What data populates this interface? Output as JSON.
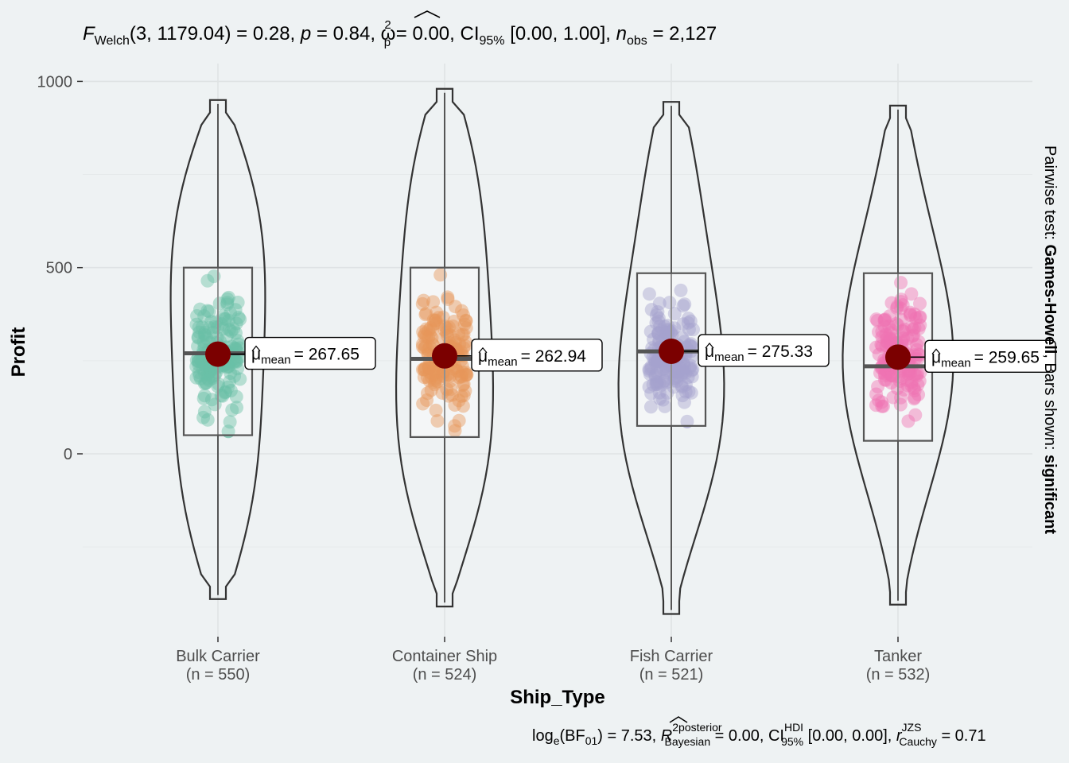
{
  "subtitle": {
    "F": "F",
    "welch": "Welch",
    "df": "(3, 1179.04) = 0.28, ",
    "p": "p",
    "p_val": " = 0.84, ",
    "omega": "ω",
    "omega_sup": "2",
    "omega_sub": "p",
    "omega_val": " = 0.00, CI",
    "ci_sub": "95%",
    "ci_val": " [0.00, 1.00], ",
    "n": "n",
    "n_sub": "obs",
    "n_val": " = 2,127"
  },
  "caption": {
    "log": "log",
    "log_sub": "e",
    "bf": "(BF",
    "bf_sub": "01",
    "bf_val": ") = 7.53, ",
    "r": "R",
    "r_sup": "2",
    "r_sup2": "posterior",
    "r_sub": "Bayesian",
    "r_val": " = 0.00, CI",
    "hdi_sup": "HDI",
    "hdi_sub": "95%",
    "hdi_val": " [0.00, 0.00], ",
    "rc": "r",
    "rc_sup": "JZS",
    "rc_sub": "Cauchy",
    "rc_val": " = 0.71"
  },
  "right_label": {
    "prefix": "Pairwise test: ",
    "test": "Games-Howell",
    "mid": ", Bars shown: ",
    "shown": "significant"
  },
  "mean_symbol": "μ",
  "mean_sub": "mean",
  "chart_data": {
    "type": "violin",
    "xlabel": "Ship_Type",
    "ylabel": "Profit",
    "y_ticks": [
      0,
      500,
      1000
    ],
    "y_tick_labels": [
      "0",
      "500",
      "1000"
    ],
    "ylim": [
      -500,
      1020
    ],
    "grid": true,
    "colors": [
      "#1b9e77",
      "#d95f02",
      "#7570b3",
      "#e7298a"
    ],
    "mean_point_color": "#7b0000",
    "groups": [
      {
        "name": "Bulk Carrier",
        "n_label": "(n = 550)",
        "n": 550,
        "min": -390,
        "max": 950,
        "q1": 50,
        "median": 270,
        "q3": 500,
        "mean": 267.65,
        "mean_label": "= 267.65"
      },
      {
        "name": "Container Ship",
        "n_label": "(n = 524)",
        "n": 524,
        "min": -410,
        "max": 980,
        "q1": 45,
        "median": 255,
        "q3": 500,
        "mean": 262.94,
        "mean_label": "= 262.94"
      },
      {
        "name": "Fish Carrier",
        "n_label": "(n = 521)",
        "n": 521,
        "min": -430,
        "max": 945,
        "q1": 75,
        "median": 275,
        "q3": 485,
        "mean": 275.33,
        "mean_label": "= 275.33"
      },
      {
        "name": "Tanker",
        "n_label": "(n = 532)",
        "n": 532,
        "min": -405,
        "max": 935,
        "q1": 35,
        "median": 235,
        "q3": 485,
        "mean": 259.65,
        "mean_label": "= 259.65"
      }
    ]
  }
}
